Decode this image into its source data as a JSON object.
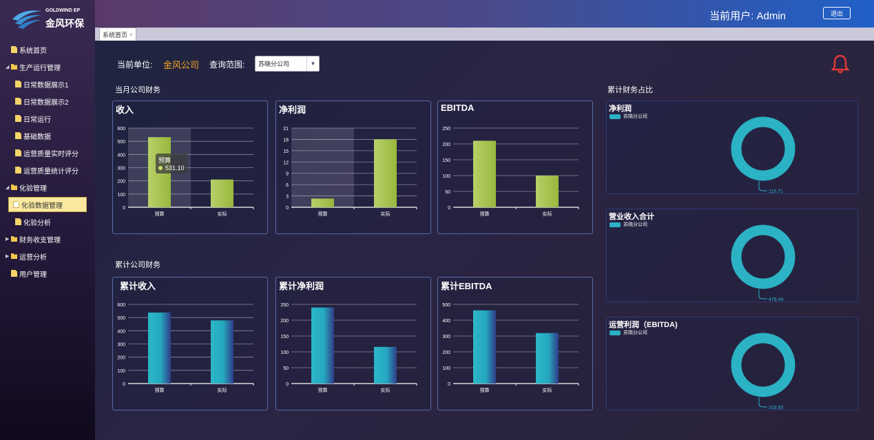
{
  "brand": {
    "en": "GOLDWIND EP",
    "cn": "金风环保"
  },
  "header": {
    "user_label": "当前用户: Admin",
    "logout_label": "退出"
  },
  "tab": {
    "label": "系统首页",
    "close": "×"
  },
  "sidebar": {
    "items": [
      {
        "label": "系统首页",
        "type": "doc",
        "indent": 0
      },
      {
        "label": "生产运行管理",
        "type": "folder",
        "indent": 0,
        "expanded": true
      },
      {
        "label": "日常数据展示1",
        "type": "doc",
        "indent": 1
      },
      {
        "label": "日常数据展示2",
        "type": "doc",
        "indent": 1
      },
      {
        "label": "日常运行",
        "type": "doc",
        "indent": 1
      },
      {
        "label": "基础数据",
        "type": "doc",
        "indent": 1
      },
      {
        "label": "运营质量实时评分",
        "type": "doc",
        "indent": 1
      },
      {
        "label": "运营质量统计评分",
        "type": "doc",
        "indent": 1
      },
      {
        "label": "化验管理",
        "type": "folder",
        "indent": 0,
        "expanded": true
      },
      {
        "label": "化验数据管理",
        "type": "doc",
        "indent": 1,
        "active": true
      },
      {
        "label": "化验分析",
        "type": "doc",
        "indent": 1
      },
      {
        "label": "财务收支管理",
        "type": "folder",
        "indent": 0,
        "expanded": false
      },
      {
        "label": "运营分析",
        "type": "folder",
        "indent": 0,
        "expanded": false
      },
      {
        "label": "用户管理",
        "type": "doc",
        "indent": 0
      }
    ]
  },
  "filters": {
    "unit_label": "当前单位:",
    "unit_value": "金风公司",
    "range_label": "查询范围:",
    "range_value": "苏晓分公司"
  },
  "sections": {
    "monthly": "当月公司财务",
    "cumulative": "累计公司财务",
    "ratio": "累计财务占比"
  },
  "colors": {
    "green_bar": "#a6c24a",
    "teal_bar": "#2bb2c4",
    "donut": "#2bb2c4",
    "alert": "#e53935"
  },
  "chart_data": [
    {
      "type": "bar",
      "title": "收入",
      "categories": [
        "预算",
        "实际"
      ],
      "values": [
        531.1,
        210
      ],
      "ylim": [
        0,
        600
      ],
      "ticks": [
        0,
        100,
        200,
        300,
        400,
        500,
        600
      ],
      "style": "green",
      "tooltip": {
        "category": "预算",
        "value": "531.10"
      }
    },
    {
      "type": "bar",
      "title": "净利润",
      "categories": [
        "预算",
        "实际"
      ],
      "values": [
        2.3,
        18
      ],
      "ylim": [
        0,
        21
      ],
      "ticks": [
        0,
        3,
        6,
        9,
        12,
        15,
        18,
        21
      ],
      "style": "green"
    },
    {
      "type": "bar",
      "title": "EBITDA",
      "categories": [
        "预算",
        "实际"
      ],
      "values": [
        210,
        100
      ],
      "ylim": [
        0,
        250
      ],
      "ticks": [
        0,
        50,
        100,
        150,
        200,
        250
      ],
      "style": "green"
    },
    {
      "type": "bar",
      "title": "累计收入",
      "categories": [
        "预算",
        "实际"
      ],
      "values": [
        538,
        478.44
      ],
      "ylim": [
        0,
        600
      ],
      "ticks": [
        0,
        100,
        200,
        300,
        400,
        500,
        600
      ],
      "style": "teal"
    },
    {
      "type": "bar",
      "title": "累计净利润",
      "categories": [
        "预算",
        "实际"
      ],
      "values": [
        240,
        115.71
      ],
      "ylim": [
        0,
        250
      ],
      "ticks": [
        0,
        50,
        100,
        150,
        200,
        250
      ],
      "style": "teal"
    },
    {
      "type": "bar",
      "title": "累计EBITDA",
      "categories": [
        "预算",
        "实际"
      ],
      "values": [
        462,
        318.65
      ],
      "ylim": [
        0,
        500
      ],
      "ticks": [
        0,
        100,
        200,
        300,
        400,
        500
      ],
      "style": "teal"
    },
    {
      "type": "pie",
      "title": "净利润",
      "legend": "苏晓分公司",
      "value_label": "115.71",
      "values": [
        115.71
      ]
    },
    {
      "type": "pie",
      "title": "营业收入合计",
      "legend": "苏晓分公司",
      "value_label": "478.44",
      "values": [
        478.44
      ]
    },
    {
      "type": "pie",
      "title": "运营利润（EBITDA)",
      "legend": "苏晓分公司",
      "value_label": "318.65",
      "values": [
        318.65
      ]
    }
  ]
}
